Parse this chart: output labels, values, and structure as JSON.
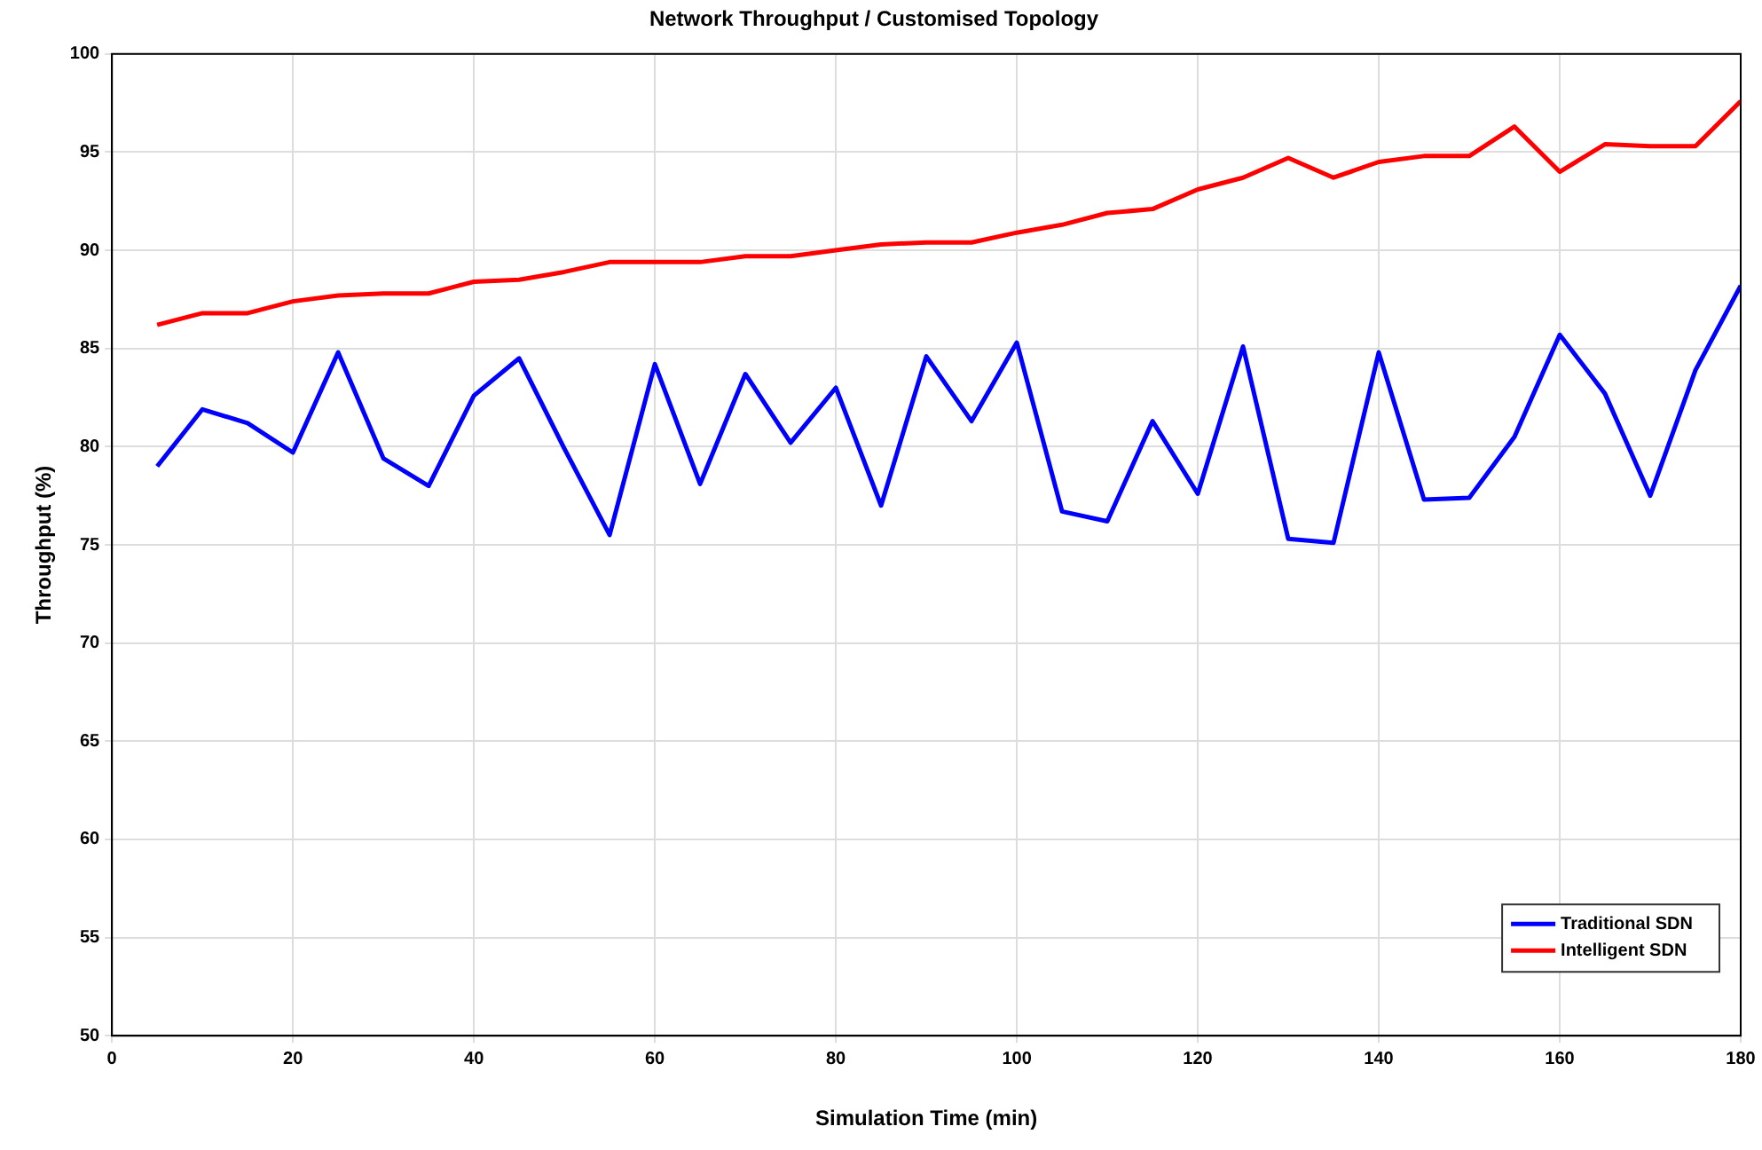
{
  "chart_data": {
    "type": "line",
    "title": "Network Throughput / Customised Topology",
    "xlabel": "Simulation Time (min)",
    "ylabel": "Throughput (%)",
    "x": [
      5,
      10,
      15,
      20,
      25,
      30,
      35,
      40,
      45,
      50,
      55,
      60,
      65,
      70,
      75,
      80,
      85,
      90,
      95,
      100,
      105,
      110,
      115,
      120,
      125,
      130,
      135,
      140,
      145,
      150,
      155,
      160,
      165,
      170,
      175,
      180
    ],
    "series": [
      {
        "name": "Traditional SDN",
        "color": "#0000ff",
        "values": [
          79.0,
          81.9,
          81.2,
          79.7,
          84.8,
          79.4,
          78.0,
          82.6,
          84.5,
          79.9,
          75.5,
          84.2,
          78.1,
          83.7,
          80.2,
          83.0,
          77.0,
          84.6,
          81.3,
          85.3,
          76.7,
          76.2,
          81.3,
          77.6,
          85.1,
          75.3,
          75.1,
          84.8,
          77.3,
          77.4,
          80.5,
          85.7,
          82.7,
          77.5,
          83.9,
          88.2
        ]
      },
      {
        "name": "Intelligent SDN",
        "color": "#ff0000",
        "values": [
          86.2,
          86.8,
          86.8,
          87.4,
          87.7,
          87.8,
          87.8,
          88.4,
          88.5,
          88.9,
          89.4,
          89.4,
          89.4,
          89.7,
          89.7,
          90.0,
          90.3,
          90.4,
          90.4,
          90.9,
          91.3,
          91.9,
          92.1,
          93.1,
          93.7,
          94.7,
          93.7,
          94.5,
          94.8,
          94.8,
          96.3,
          94.0,
          95.4,
          95.3,
          95.3,
          97.6
        ]
      }
    ],
    "xlim": [
      0,
      180
    ],
    "xticks": [
      0,
      20,
      40,
      60,
      80,
      100,
      120,
      140,
      160,
      180
    ],
    "ylim": [
      50,
      100
    ],
    "yticks": [
      50,
      55,
      60,
      65,
      70,
      75,
      80,
      85,
      90,
      95,
      100
    ],
    "grid": true,
    "legend": "bottom right",
    "marker": "none",
    "line_style": "solid"
  }
}
